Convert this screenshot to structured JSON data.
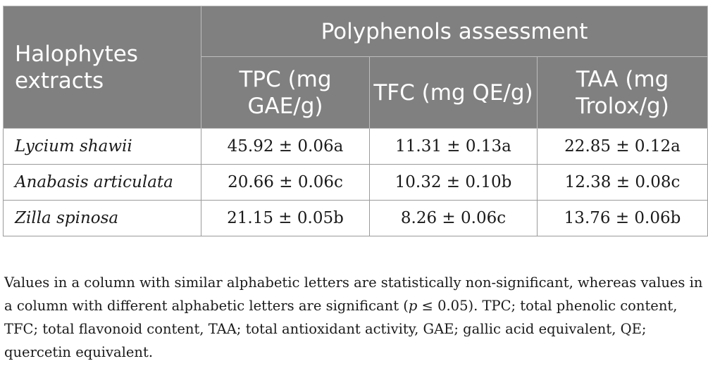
{
  "table": {
    "corner_header": "Halophytes extracts",
    "group_header": "Polyphenols assessment",
    "columns": [
      "TPC (mg GAE/g)",
      "TFC (mg QE/g)",
      "TAA (mg Trolox/g)"
    ],
    "rows": [
      {
        "name": "Lycium shawii",
        "values": [
          "45.92 ± 0.06a",
          "11.31 ± 0.13a",
          "22.85 ± 0.12a"
        ]
      },
      {
        "name": "Anabasis articulata",
        "values": [
          "20.66 ± 0.06c",
          "10.32 ± 0.10b",
          "12.38 ± 0.08c"
        ]
      },
      {
        "name": "Zilla spinosa",
        "values": [
          "21.15 ± 0.05b",
          "8.26 ± 0.06c",
          "13.76 ± 0.06b"
        ]
      }
    ]
  },
  "footnote": {
    "part1": "Values in a column with similar alphabetic letters are statistically non-significant, whereas values in a column with different alphabetic letters are significant (",
    "p_symbol": "p",
    "part2": " ≤ 0.05). TPC; total phenolic content, TFC; total flavonoid content, TAA; total antioxidant activity, GAE; gallic acid equivalent, QE; quercetin equivalent."
  },
  "colors": {
    "header_bg": "#808080",
    "header_text": "#ffffff",
    "border": "#9a9a9a"
  }
}
